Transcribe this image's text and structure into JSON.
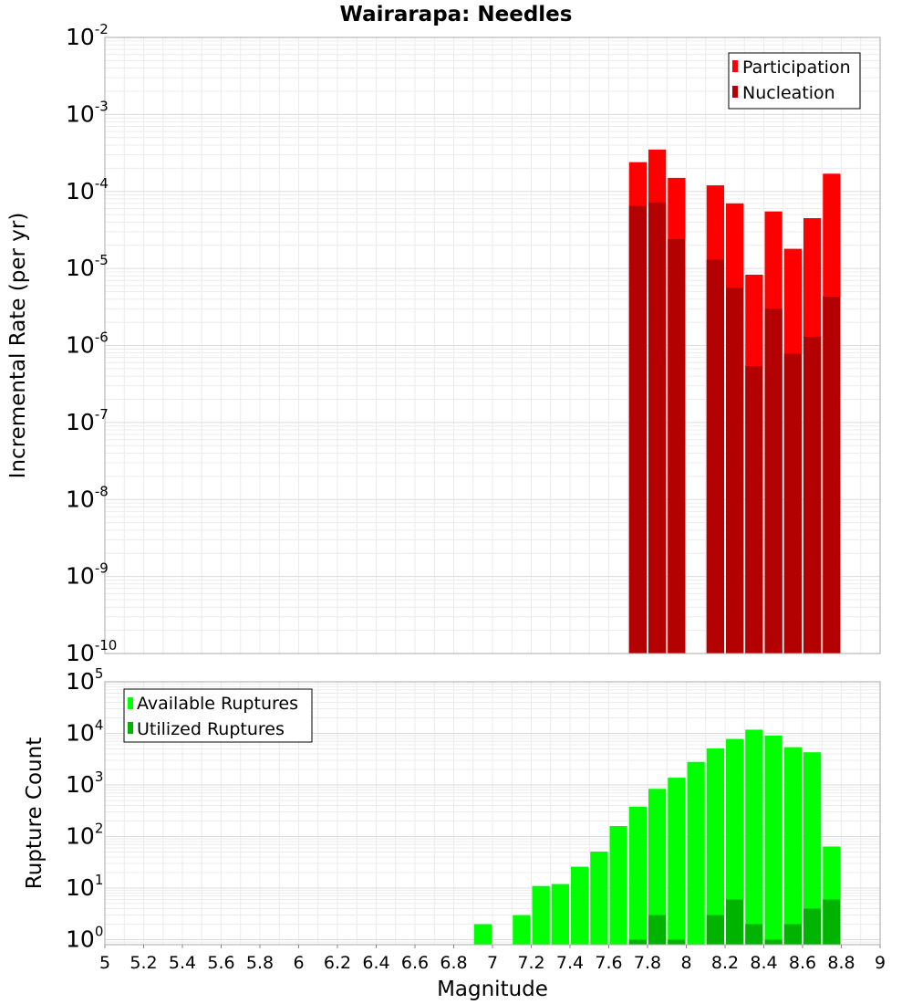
{
  "title": "Wairarapa: Needles",
  "chart_data": [
    {
      "type": "bar",
      "title": "Wairarapa: Needles",
      "xlabel": "Magnitude",
      "ylabel": "Incremental Rate (per yr)",
      "yscale": "log",
      "xlim": [
        5,
        9
      ],
      "ylim": [
        1e-10,
        0.01
      ],
      "grid": true,
      "legend_position": "top-right",
      "bar_width": 0.1,
      "x": [
        7.75,
        7.85,
        7.95,
        8.15,
        8.25,
        8.35,
        8.45,
        8.55,
        8.65,
        8.75
      ],
      "series": [
        {
          "name": "Participation",
          "color": "#ff0000",
          "values": [
            0.00024,
            0.00035,
            0.00015,
            0.00012,
            7e-05,
            8.3e-06,
            5.5e-05,
            1.8e-05,
            4.5e-05,
            0.00017
          ]
        },
        {
          "name": "Nucleation",
          "color": "#b30000",
          "values": [
            6.5e-05,
            7.2e-05,
            2.4e-05,
            1.3e-05,
            5.6e-06,
            5.4e-07,
            3e-06,
            7.8e-07,
            1.3e-06,
            4.3e-06
          ]
        }
      ]
    },
    {
      "type": "bar",
      "xlabel": "Magnitude",
      "ylabel": "Rupture Count",
      "yscale": "log",
      "xlim": [
        5,
        9
      ],
      "ylim": [
        0.8,
        100000
      ],
      "grid": true,
      "legend_position": "top-left",
      "bar_width": 0.1,
      "x": [
        6.95,
        7.15,
        7.25,
        7.35,
        7.45,
        7.55,
        7.65,
        7.75,
        7.85,
        7.95,
        8.05,
        8.15,
        8.25,
        8.35,
        8.45,
        8.55,
        8.65,
        8.75
      ],
      "series": [
        {
          "name": "Available Ruptures",
          "color": "#00ff00",
          "values": [
            2,
            3,
            11,
            12,
            26,
            51,
            160,
            380,
            840,
            1380,
            2800,
            5100,
            7800,
            11800,
            9100,
            5400,
            4300,
            64
          ]
        },
        {
          "name": "Utilized Ruptures",
          "color": "#00b300",
          "values": [
            0,
            0,
            0,
            0,
            0,
            0,
            0,
            1,
            3,
            1,
            0,
            3,
            6,
            2,
            1,
            2,
            4,
            6
          ]
        }
      ]
    }
  ],
  "x_ticks": [
    "5",
    "5.2",
    "5.4",
    "5.6",
    "5.8",
    "6",
    "6.2",
    "6.4",
    "6.6",
    "6.8",
    "7",
    "7.2",
    "7.4",
    "7.6",
    "7.8",
    "8",
    "8.2",
    "8.4",
    "8.6",
    "8.8",
    "9"
  ],
  "top_y_ticks": [
    {
      "base": "10",
      "exp": "-2"
    },
    {
      "base": "10",
      "exp": "-3"
    },
    {
      "base": "10",
      "exp": "-4"
    },
    {
      "base": "10",
      "exp": "-5"
    },
    {
      "base": "10",
      "exp": "-6"
    },
    {
      "base": "10",
      "exp": "-7"
    },
    {
      "base": "10",
      "exp": "-8"
    },
    {
      "base": "10",
      "exp": "-9"
    },
    {
      "base": "10",
      "exp": "-10"
    }
  ],
  "bottom_y_ticks": [
    {
      "base": "10",
      "exp": "5"
    },
    {
      "base": "10",
      "exp": "4"
    },
    {
      "base": "10",
      "exp": "3"
    },
    {
      "base": "10",
      "exp": "2"
    },
    {
      "base": "10",
      "exp": "1"
    },
    {
      "base": "10",
      "exp": "0"
    }
  ]
}
